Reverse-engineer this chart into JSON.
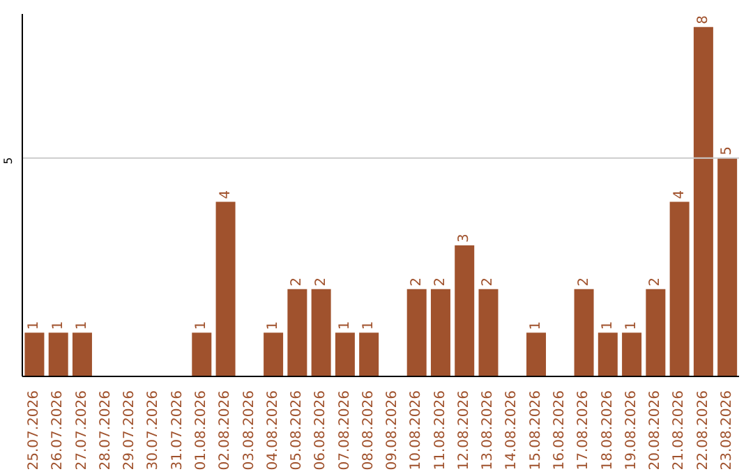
{
  "chart_data": {
    "type": "bar",
    "categories": [
      "25.07.2026",
      "26.07.2026",
      "27.07.2026",
      "28.07.2026",
      "29.07.2026",
      "30.07.2026",
      "31.07.2026",
      "01.08.2026",
      "02.08.2026",
      "03.08.2026",
      "04.08.2026",
      "05.08.2026",
      "06.08.2026",
      "07.08.2026",
      "08.08.2026",
      "09.08.2026",
      "10.08.2026",
      "11.08.2026",
      "12.08.2026",
      "13.08.2026",
      "14.08.2026",
      "15.08.2026",
      "16.08.2026",
      "17.08.2026",
      "18.08.2026",
      "19.08.2026",
      "20.08.2026",
      "21.08.2026",
      "22.08.2026",
      "23.08.2026"
    ],
    "values": [
      1,
      1,
      1,
      0,
      0,
      0,
      0,
      1,
      4,
      0,
      1,
      2,
      2,
      1,
      1,
      0,
      2,
      2,
      3,
      2,
      0,
      1,
      0,
      2,
      1,
      1,
      2,
      4,
      8,
      5
    ],
    "value_labels": [
      "1",
      "1",
      "1",
      null,
      null,
      null,
      null,
      "1",
      "4",
      null,
      "1",
      "2",
      "2",
      "1",
      "1",
      null,
      "2",
      "2",
      "3",
      "2",
      null,
      "1",
      null,
      "2",
      "1",
      "1",
      "2",
      "4",
      "8",
      "5"
    ],
    "color": "#a0522d",
    "ylim": [
      0,
      8.3
    ],
    "yticks": [
      5
    ],
    "grid": "y"
  }
}
